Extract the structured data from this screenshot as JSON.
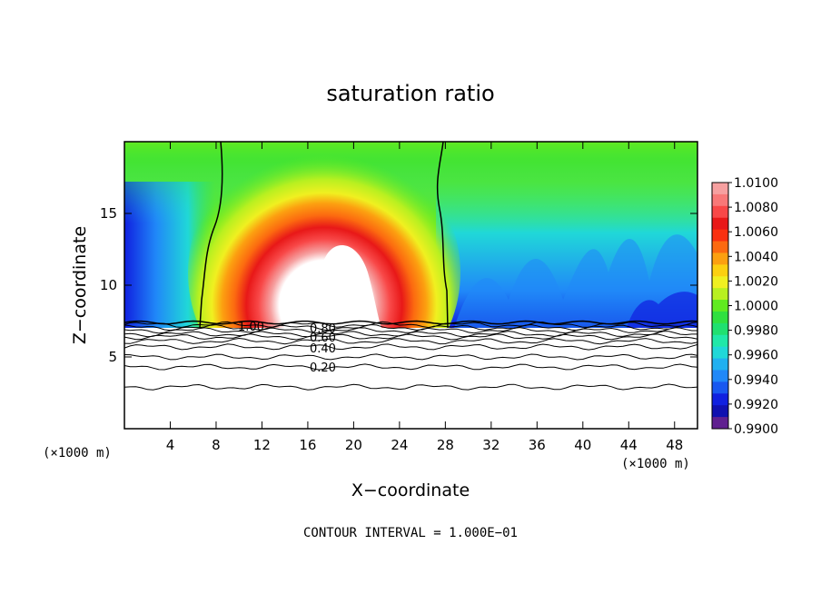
{
  "chart_data": {
    "type": "contour",
    "title": "saturation ratio",
    "xlabel": "X−coordinate",
    "ylabel": "Z−coordinate",
    "x_unit_label_left": "(×1000 m)",
    "x_unit_label_right": "(×1000 m)",
    "footer": "CONTOUR INTERVAL = 1.000E−01",
    "xlim": [
      0,
      50
    ],
    "ylim": [
      0,
      20
    ],
    "x_ticks": [
      4,
      8,
      12,
      16,
      20,
      24,
      28,
      32,
      36,
      40,
      44,
      48
    ],
    "y_ticks": [
      5,
      10,
      15
    ],
    "colorbar": {
      "labels": [
        "1.0100",
        "1.0080",
        "1.0060",
        "1.0040",
        "1.0020",
        "1.0000",
        "0.9980",
        "0.9960",
        "0.9940",
        "0.9920",
        "0.9900"
      ],
      "levels": [
        1.01,
        1.009,
        1.008,
        1.007,
        1.006,
        1.005,
        1.004,
        1.003,
        1.002,
        1.001,
        1.0,
        0.999,
        0.998,
        0.997,
        0.996,
        0.995,
        0.994,
        0.993,
        0.992,
        0.991,
        0.99
      ],
      "colors": [
        "#f6a0a0",
        "#f87878",
        "#f84848",
        "#e81818",
        "#fa3010",
        "#fc6a10",
        "#fca010",
        "#fcd010",
        "#f0f020",
        "#b8f020",
        "#60ea20",
        "#30e040",
        "#20e070",
        "#20e8a8",
        "#20d8d8",
        "#20b0f0",
        "#2088f8",
        "#1858f0",
        "#1020e0",
        "#1010b0",
        "#602090"
      ]
    },
    "contour_labels": [
      {
        "text": "1.00",
        "x": 12.5,
        "z": 7.3
      },
      {
        "text": "0.80",
        "x": 17.6,
        "z": 7.2
      },
      {
        "text": "0.60",
        "x": 17.6,
        "z": 6.9
      },
      {
        "text": "0.40",
        "x": 17.6,
        "z": 5.5
      },
      {
        "text": "0.20",
        "x": 17.6,
        "z": 4.3
      }
    ],
    "contour_z_levels": [
      7.25,
      7.05,
      6.85,
      6.6,
      6.4,
      6.1,
      5.7,
      5.0,
      4.3,
      2.9
    ],
    "cloud_base_z": 7.4
  }
}
